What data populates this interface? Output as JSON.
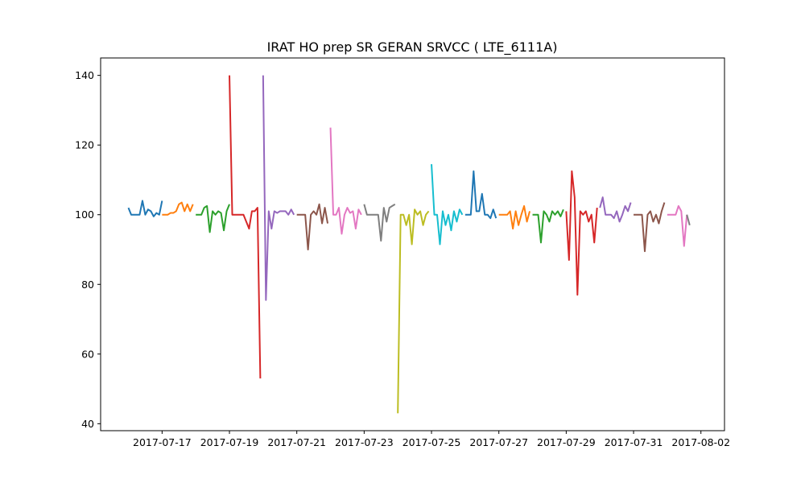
{
  "chart_data": {
    "type": "line",
    "title": "IRAT HO prep SR GERAN SRVCC ( LTE_6111A)",
    "xlabel": "",
    "ylabel": "",
    "x_start": "2017-07-16",
    "xlim": [
      "2017-07-15 04:12",
      "2017-08-02 16:48"
    ],
    "ylim": [
      38,
      145
    ],
    "x_ticks": [
      "2017-07-17",
      "2017-07-19",
      "2017-07-21",
      "2017-07-23",
      "2017-07-25",
      "2017-07-27",
      "2017-07-29",
      "2017-07-31",
      "2017-08-02"
    ],
    "y_ticks": [
      40,
      60,
      80,
      100,
      120,
      140
    ],
    "grid": false,
    "legend": "none",
    "series": [
      {
        "color": "#1f77b4",
        "x": [
          "2017-07-16 00:00",
          "2017-07-16 02:00",
          "2017-07-16 04:00",
          "2017-07-16 06:00",
          "2017-07-16 08:00",
          "2017-07-16 10:00",
          "2017-07-16 12:00",
          "2017-07-16 14:00",
          "2017-07-16 16:00",
          "2017-07-16 18:00",
          "2017-07-16 20:00",
          "2017-07-16 22:00",
          "2017-07-17 00:00"
        ],
        "y": [
          102,
          100,
          100,
          100,
          100,
          104,
          100,
          101.5,
          101,
          99.5,
          100.5,
          100,
          104
        ]
      },
      {
        "color": "#ff7f0e",
        "x": [
          "2017-07-17 00:00",
          "2017-07-17 02:00",
          "2017-07-17 04:00",
          "2017-07-17 06:00",
          "2017-07-17 08:00",
          "2017-07-17 10:00",
          "2017-07-17 12:00",
          "2017-07-17 14:00",
          "2017-07-17 16:00",
          "2017-07-17 18:00",
          "2017-07-17 20:00",
          "2017-07-17 22:00"
        ],
        "y": [
          100,
          100,
          100,
          100.5,
          100.5,
          101,
          103,
          103.5,
          101,
          103,
          101,
          103
        ]
      },
      {
        "color": "#2ca02c",
        "x": [
          "2017-07-18 00:00",
          "2017-07-18 02:00",
          "2017-07-18 04:00",
          "2017-07-18 06:00",
          "2017-07-18 08:00",
          "2017-07-18 10:00",
          "2017-07-18 12:00",
          "2017-07-18 14:00",
          "2017-07-18 16:00",
          "2017-07-18 18:00",
          "2017-07-18 20:00",
          "2017-07-18 22:00",
          "2017-07-19 00:00"
        ],
        "y": [
          100,
          100,
          100,
          102,
          102.5,
          95,
          101,
          100,
          101,
          100.5,
          95.5,
          101,
          103
        ]
      },
      {
        "color": "#d62728",
        "x": [
          "2017-07-19 00:00",
          "2017-07-19 02:00",
          "2017-07-19 04:00",
          "2017-07-19 06:00",
          "2017-07-19 08:00",
          "2017-07-19 10:00",
          "2017-07-19 12:00",
          "2017-07-19 14:00",
          "2017-07-19 16:00",
          "2017-07-19 18:00",
          "2017-07-19 20:00",
          "2017-07-19 22:00"
        ],
        "y": [
          140,
          100,
          100,
          100,
          100,
          100,
          98,
          96,
          101,
          101,
          102,
          53
        ]
      },
      {
        "color": "#9467bd",
        "x": [
          "2017-07-20 00:00",
          "2017-07-20 02:00",
          "2017-07-20 04:00",
          "2017-07-20 06:00",
          "2017-07-20 08:00",
          "2017-07-20 10:00",
          "2017-07-20 12:00",
          "2017-07-20 14:00",
          "2017-07-20 16:00",
          "2017-07-20 18:00",
          "2017-07-20 20:00",
          "2017-07-20 22:00"
        ],
        "y": [
          140,
          75.5,
          101,
          96,
          101,
          100.5,
          101,
          101,
          101,
          100,
          101.5,
          100
        ]
      },
      {
        "color": "#8c564b",
        "x": [
          "2017-07-21 00:00",
          "2017-07-21 02:00",
          "2017-07-21 04:00",
          "2017-07-21 06:00",
          "2017-07-21 08:00",
          "2017-07-21 10:00",
          "2017-07-21 12:00",
          "2017-07-21 14:00",
          "2017-07-21 16:00",
          "2017-07-21 18:00",
          "2017-07-21 20:00",
          "2017-07-21 22:00"
        ],
        "y": [
          100,
          100,
          100,
          100,
          90,
          100,
          101,
          100,
          103,
          97.5,
          102,
          97.5
        ]
      },
      {
        "color": "#e377c2",
        "x": [
          "2017-07-22 00:00",
          "2017-07-22 02:00",
          "2017-07-22 04:00",
          "2017-07-22 06:00",
          "2017-07-22 08:00",
          "2017-07-22 10:00",
          "2017-07-22 12:00",
          "2017-07-22 14:00",
          "2017-07-22 16:00",
          "2017-07-22 18:00",
          "2017-07-22 20:00",
          "2017-07-22 22:00"
        ],
        "y": [
          125,
          100,
          100,
          102,
          94.5,
          100,
          102,
          100.5,
          101,
          96,
          101.5,
          100
        ]
      },
      {
        "color": "#7f7f7f",
        "x": [
          "2017-07-23 00:00",
          "2017-07-23 02:00",
          "2017-07-23 04:00",
          "2017-07-23 06:00",
          "2017-07-23 08:00",
          "2017-07-23 10:00",
          "2017-07-23 12:00",
          "2017-07-23 14:00",
          "2017-07-23 16:00",
          "2017-07-23 18:00",
          "2017-07-23 20:00",
          "2017-07-23 22:00"
        ],
        "y": [
          103,
          100,
          100,
          100,
          100,
          100,
          92.5,
          102,
          98,
          102,
          102.5,
          103
        ]
      },
      {
        "color": "#bcbd22",
        "x": [
          "2017-07-24 00:00",
          "2017-07-24 02:00",
          "2017-07-24 04:00",
          "2017-07-24 06:00",
          "2017-07-24 08:00",
          "2017-07-24 10:00",
          "2017-07-24 12:00",
          "2017-07-24 14:00",
          "2017-07-24 16:00",
          "2017-07-24 18:00",
          "2017-07-24 20:00",
          "2017-07-24 22:00"
        ],
        "y": [
          43,
          100,
          100,
          97,
          100,
          91.5,
          101.5,
          100,
          101,
          97,
          100,
          101
        ]
      },
      {
        "color": "#17becf",
        "x": [
          "2017-07-25 00:00",
          "2017-07-25 02:00",
          "2017-07-25 04:00",
          "2017-07-25 06:00",
          "2017-07-25 08:00",
          "2017-07-25 10:00",
          "2017-07-25 12:00",
          "2017-07-25 14:00",
          "2017-07-25 16:00",
          "2017-07-25 18:00",
          "2017-07-25 20:00",
          "2017-07-25 22:00"
        ],
        "y": [
          114.5,
          100,
          100,
          91.5,
          101,
          97,
          100,
          95.5,
          101,
          98,
          101.5,
          100
        ]
      },
      {
        "color": "#1f77b4",
        "x": [
          "2017-07-26 00:00",
          "2017-07-26 02:00",
          "2017-07-26 04:00",
          "2017-07-26 06:00",
          "2017-07-26 08:00",
          "2017-07-26 10:00",
          "2017-07-26 12:00",
          "2017-07-26 14:00",
          "2017-07-26 16:00",
          "2017-07-26 18:00",
          "2017-07-26 20:00",
          "2017-07-26 22:00"
        ],
        "y": [
          100,
          100,
          100,
          112.5,
          101,
          101,
          106,
          100,
          100,
          99,
          101.5,
          99
        ]
      },
      {
        "color": "#ff7f0e",
        "x": [
          "2017-07-27 00:00",
          "2017-07-27 02:00",
          "2017-07-27 04:00",
          "2017-07-27 06:00",
          "2017-07-27 08:00",
          "2017-07-27 10:00",
          "2017-07-27 12:00",
          "2017-07-27 14:00",
          "2017-07-27 16:00",
          "2017-07-27 18:00",
          "2017-07-27 20:00",
          "2017-07-27 22:00"
        ],
        "y": [
          100,
          100,
          100,
          100,
          101,
          96,
          101,
          97,
          100,
          102.5,
          98,
          101
        ]
      },
      {
        "color": "#2ca02c",
        "x": [
          "2017-07-28 00:00",
          "2017-07-28 02:00",
          "2017-07-28 04:00",
          "2017-07-28 06:00",
          "2017-07-28 08:00",
          "2017-07-28 10:00",
          "2017-07-28 12:00",
          "2017-07-28 14:00",
          "2017-07-28 16:00",
          "2017-07-28 18:00",
          "2017-07-28 20:00",
          "2017-07-28 22:00"
        ],
        "y": [
          100,
          100,
          100,
          92,
          101,
          100,
          98,
          101,
          100,
          101,
          99.5,
          101.5
        ]
      },
      {
        "color": "#d62728",
        "x": [
          "2017-07-29 00:00",
          "2017-07-29 02:00",
          "2017-07-29 04:00",
          "2017-07-29 06:00",
          "2017-07-29 08:00",
          "2017-07-29 10:00",
          "2017-07-29 12:00",
          "2017-07-29 14:00",
          "2017-07-29 16:00",
          "2017-07-29 18:00",
          "2017-07-29 20:00",
          "2017-07-29 22:00"
        ],
        "y": [
          101,
          87,
          112.5,
          105,
          77,
          101,
          100,
          101,
          98,
          100,
          92,
          102
        ]
      },
      {
        "color": "#9467bd",
        "x": [
          "2017-07-30 00:00",
          "2017-07-30 02:00",
          "2017-07-30 04:00",
          "2017-07-30 06:00",
          "2017-07-30 08:00",
          "2017-07-30 10:00",
          "2017-07-30 12:00",
          "2017-07-30 14:00",
          "2017-07-30 16:00",
          "2017-07-30 18:00",
          "2017-07-30 20:00",
          "2017-07-30 22:00"
        ],
        "y": [
          102,
          105,
          100,
          100,
          100,
          99,
          101,
          98,
          100,
          102.5,
          101,
          103.5
        ]
      },
      {
        "color": "#8c564b",
        "x": [
          "2017-07-31 00:00",
          "2017-07-31 02:00",
          "2017-07-31 04:00",
          "2017-07-31 06:00",
          "2017-07-31 08:00",
          "2017-07-31 10:00",
          "2017-07-31 12:00",
          "2017-07-31 14:00",
          "2017-07-31 16:00",
          "2017-07-31 18:00",
          "2017-07-31 20:00",
          "2017-07-31 22:00"
        ],
        "y": [
          100,
          100,
          100,
          100,
          89.5,
          100,
          101,
          98,
          100,
          97.5,
          101,
          103.5
        ]
      },
      {
        "color": "#e377c2",
        "x": [
          "2017-08-01 00:00",
          "2017-08-01 02:00",
          "2017-08-01 04:00",
          "2017-08-01 06:00",
          "2017-08-01 08:00",
          "2017-08-01 10:00",
          "2017-08-01 12:00",
          "2017-08-01 14:00"
        ],
        "y": [
          100,
          100,
          100,
          100,
          102.5,
          101,
          91,
          100
        ]
      },
      {
        "color": "#7f7f7f",
        "x": [
          "2017-08-01 14:00",
          "2017-08-01 16:00"
        ],
        "y": [
          100,
          97
        ]
      }
    ]
  }
}
